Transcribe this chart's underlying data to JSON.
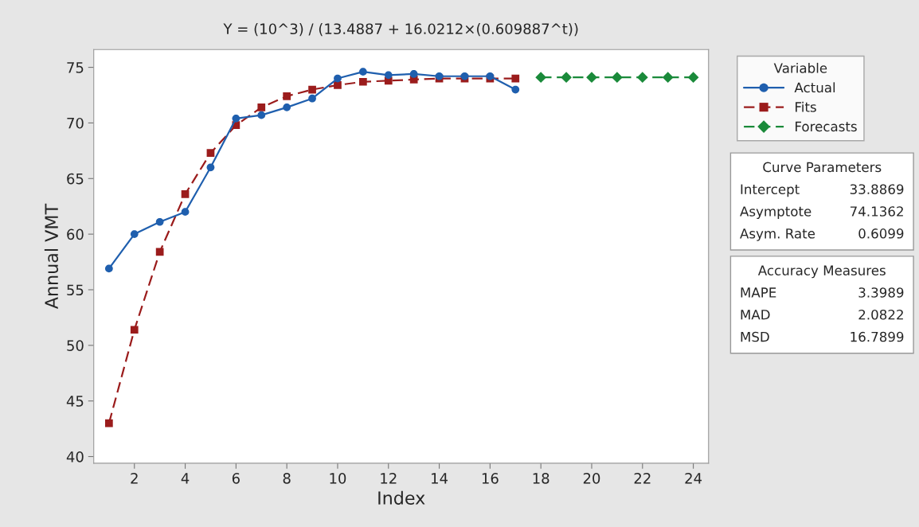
{
  "chart_data": {
    "type": "line",
    "title": "Y = (10^3) / (13.4887 + 16.0212×(0.609887^t))",
    "xlabel": "Index",
    "ylabel": "Annual VMT",
    "legend_title": "Variable",
    "legend": "right",
    "grid": false,
    "xlim": [
      0.4,
      24.6
    ],
    "xticks": [
      2,
      4,
      6,
      8,
      10,
      12,
      14,
      16,
      18,
      20,
      22,
      24
    ],
    "ylim": [
      39.4,
      76.6
    ],
    "yticks": [
      40,
      45,
      50,
      55,
      60,
      65,
      70,
      75
    ],
    "series": [
      {
        "name": "Actual",
        "color": "#1f5fae",
        "marker": "circle",
        "line_style": "solid",
        "x": [
          1,
          2,
          3,
          4,
          5,
          6,
          7,
          8,
          9,
          10,
          11,
          12,
          13,
          14,
          15,
          16,
          17
        ],
        "values": [
          56.9,
          60.0,
          61.1,
          62.0,
          66.0,
          70.4,
          70.7,
          71.4,
          72.2,
          74.0,
          74.6,
          74.3,
          74.4,
          74.2,
          74.2,
          74.2,
          73.0
        ]
      },
      {
        "name": "Fits",
        "color": "#9b1c1c",
        "marker": "square",
        "line_style": "dashed",
        "x": [
          1,
          2,
          3,
          4,
          5,
          6,
          7,
          8,
          9,
          10,
          11,
          12,
          13,
          14,
          15,
          16,
          17
        ],
        "values": [
          43.0,
          51.4,
          58.4,
          63.6,
          67.3,
          69.8,
          71.4,
          72.4,
          73.0,
          73.4,
          73.7,
          73.8,
          73.9,
          74.0,
          74.0,
          74.0,
          74.0
        ]
      },
      {
        "name": "Forecasts",
        "color": "#1a8a3a",
        "marker": "diamond",
        "line_style": "dashed",
        "x": [
          18,
          19,
          20,
          21,
          22,
          23,
          24
        ],
        "values": [
          74.1,
          74.1,
          74.1,
          74.1,
          74.1,
          74.1,
          74.1
        ]
      }
    ],
    "annotations": [
      "Curve Parameters",
      "Intercept",
      "33.8869",
      "Asymptote",
      "74.1362",
      "Asym. Rate",
      "0.6099",
      "Accuracy Measures",
      "MAPE",
      "3.3989",
      "MAD",
      "2.0822",
      "MSD",
      "16.7899"
    ]
  }
}
